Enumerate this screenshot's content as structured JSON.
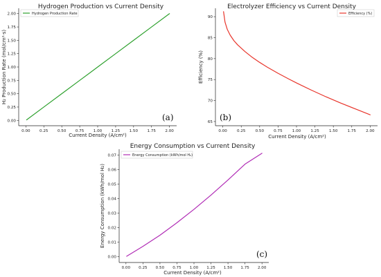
{
  "chart_data": [
    {
      "type": "line",
      "title": "Hydrogen Production vs Current Density",
      "xlabel": "Current Density (A/cm²)",
      "ylabel": "H₂ Production Rate (mol/cm²·s)",
      "xlim": [
        -0.1,
        2.1
      ],
      "ylim": [
        -0.1,
        2.1
      ],
      "xticks": [
        "0.00",
        "0.25",
        "0.50",
        "0.75",
        "1.00",
        "1.25",
        "1.50",
        "1.75",
        "2.00"
      ],
      "yticks": [
        "0.00",
        "0.25",
        "0.50",
        "0.75",
        "1.00",
        "1.25",
        "1.50",
        "1.75",
        "2.00"
      ],
      "legend_position": "top-left",
      "grid": false,
      "annotation": "(a)",
      "series": [
        {
          "name": "Hydrogen Production Rate",
          "color": "#2ca02c",
          "x": [
            0.01,
            0.25,
            0.5,
            0.75,
            1.0,
            1.25,
            1.5,
            1.75,
            2.0
          ],
          "y": [
            0.01,
            0.25,
            0.5,
            0.75,
            1.0,
            1.25,
            1.5,
            1.75,
            2.0
          ]
        }
      ]
    },
    {
      "type": "line",
      "title": "Electrolyzer Efficiency vs Current Density",
      "xlabel": "Current Density (A/cm²)",
      "ylabel": "Efficiency (%)",
      "xlim": [
        -0.1,
        2.1
      ],
      "ylim": [
        64,
        92
      ],
      "xticks": [
        "0.00",
        "0.25",
        "0.50",
        "0.75",
        "1.00",
        "1.25",
        "1.50",
        "1.75",
        "2.00"
      ],
      "yticks": [
        "65",
        "70",
        "75",
        "80",
        "85",
        "90"
      ],
      "legend_position": "top-right",
      "grid": false,
      "annotation": "(b)",
      "series": [
        {
          "name": "Efficiency (%)",
          "color": "#e8342a",
          "x": [
            0.01,
            0.03,
            0.06,
            0.1,
            0.15,
            0.2,
            0.3,
            0.4,
            0.5,
            0.6,
            0.75,
            0.9,
            1.0,
            1.2,
            1.4,
            1.6,
            1.8,
            2.0
          ],
          "y": [
            91.2,
            88.7,
            87.0,
            85.6,
            84.3,
            83.3,
            81.7,
            80.3,
            79.1,
            78.0,
            76.5,
            75.1,
            74.2,
            72.5,
            70.9,
            69.4,
            68.0,
            66.6
          ]
        }
      ]
    },
    {
      "type": "line",
      "title": "Energy Consumption vs Current Density",
      "xlabel": "Current Density (A/cm²)",
      "ylabel": "Energy Consumption (kWh/mol H₂)",
      "xlim": [
        -0.1,
        2.1
      ],
      "ylim": [
        -0.004,
        0.074
      ],
      "xticks": [
        "0.00",
        "0.25",
        "0.50",
        "0.75",
        "1.00",
        "1.25",
        "1.50",
        "1.75",
        "2.00"
      ],
      "yticks": [
        "0.00",
        "0.01",
        "0.02",
        "0.03",
        "0.04",
        "0.05",
        "0.06",
        "0.07"
      ],
      "legend_position": "top-left",
      "grid": false,
      "annotation": "(c)",
      "series": [
        {
          "name": "Energy Consumption (kWh/mol H₂)",
          "color": "#b02bb5",
          "x": [
            0.01,
            0.25,
            0.5,
            0.75,
            1.0,
            1.25,
            1.5,
            1.75,
            2.0
          ],
          "y": [
            0.0003,
            0.0071,
            0.0148,
            0.0234,
            0.0326,
            0.0424,
            0.0528,
            0.0637,
            0.0712
          ]
        }
      ]
    }
  ]
}
